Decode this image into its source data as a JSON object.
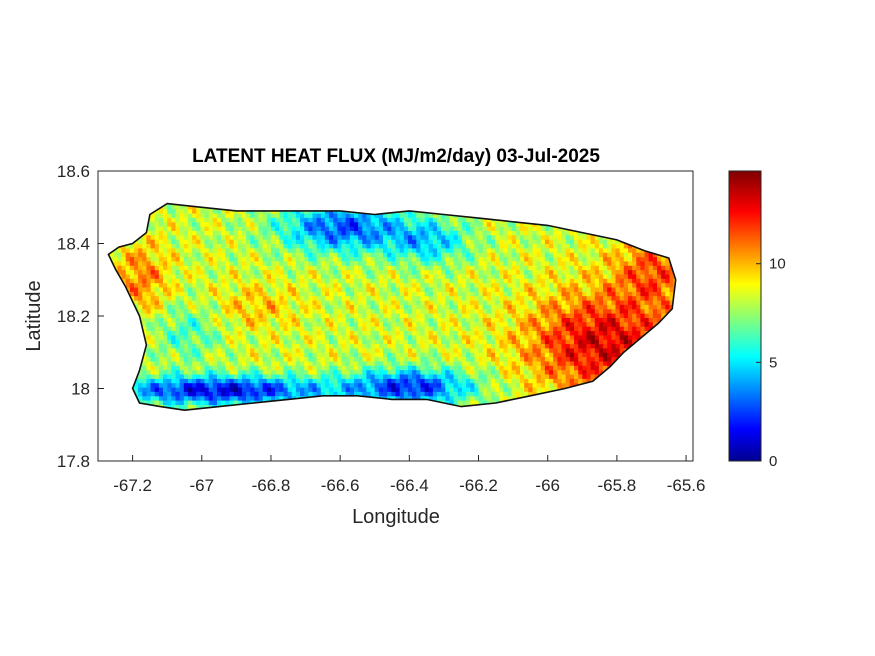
{
  "chart_data": {
    "type": "heatmap",
    "title": "LATENT HEAT FLUX (MJ/m2/day) 03-Jul-2025",
    "xlabel": "Longitude",
    "ylabel": "Latitude",
    "xlim": [
      -67.3,
      -65.58
    ],
    "ylim": [
      17.8,
      18.6
    ],
    "xticks": [
      -67.2,
      -67,
      -66.8,
      -66.6,
      -66.4,
      -66.2,
      -66,
      -65.8,
      -65.6
    ],
    "xtick_labels": [
      "-67.2",
      "-67",
      "-66.8",
      "-66.6",
      "-66.4",
      "-66.2",
      "-66",
      "-65.8",
      "-65.6"
    ],
    "yticks": [
      17.8,
      18,
      18.2,
      18.4,
      18.6
    ],
    "ytick_labels": [
      "17.8",
      "18",
      "18.2",
      "18.4",
      "18.6"
    ],
    "colorbar": {
      "colormap": "jet",
      "range": [
        0,
        14.7
      ],
      "ticks": [
        0,
        5,
        10
      ],
      "tick_labels": [
        "0",
        "5",
        "10"
      ]
    },
    "island_outline": [
      [
        -67.27,
        18.37
      ],
      [
        -67.24,
        18.39
      ],
      [
        -67.2,
        18.4
      ],
      [
        -67.16,
        18.43
      ],
      [
        -67.15,
        18.48
      ],
      [
        -67.1,
        18.51
      ],
      [
        -67.0,
        18.5
      ],
      [
        -66.9,
        18.49
      ],
      [
        -66.8,
        18.49
      ],
      [
        -66.7,
        18.49
      ],
      [
        -66.6,
        18.49
      ],
      [
        -66.5,
        18.48
      ],
      [
        -66.4,
        18.49
      ],
      [
        -66.3,
        18.48
      ],
      [
        -66.2,
        18.47
      ],
      [
        -66.1,
        18.46
      ],
      [
        -66.0,
        18.45
      ],
      [
        -65.9,
        18.43
      ],
      [
        -65.8,
        18.41
      ],
      [
        -65.72,
        18.38
      ],
      [
        -65.65,
        18.36
      ],
      [
        -65.63,
        18.3
      ],
      [
        -65.64,
        18.22
      ],
      [
        -65.68,
        18.18
      ],
      [
        -65.73,
        18.14
      ],
      [
        -65.78,
        18.1
      ],
      [
        -65.82,
        18.06
      ],
      [
        -65.87,
        18.02
      ],
      [
        -65.95,
        18.0
      ],
      [
        -66.05,
        17.98
      ],
      [
        -66.15,
        17.96
      ],
      [
        -66.25,
        17.95
      ],
      [
        -66.35,
        17.97
      ],
      [
        -66.45,
        17.97
      ],
      [
        -66.55,
        17.98
      ],
      [
        -66.65,
        17.98
      ],
      [
        -66.75,
        17.97
      ],
      [
        -66.85,
        17.96
      ],
      [
        -66.95,
        17.95
      ],
      [
        -67.05,
        17.94
      ],
      [
        -67.12,
        17.95
      ],
      [
        -67.18,
        17.96
      ],
      [
        -67.2,
        18.0
      ],
      [
        -67.18,
        18.05
      ],
      [
        -67.16,
        18.12
      ],
      [
        -67.18,
        18.2
      ],
      [
        -67.22,
        18.28
      ],
      [
        -67.25,
        18.33
      ]
    ],
    "field_pattern": {
      "south_coast": "low (0-3)",
      "north_central_coast": "low-mid (2-6)",
      "interior": "mid (7-10)",
      "east": "high (11-14)",
      "far_west": "high (10-12)"
    }
  }
}
